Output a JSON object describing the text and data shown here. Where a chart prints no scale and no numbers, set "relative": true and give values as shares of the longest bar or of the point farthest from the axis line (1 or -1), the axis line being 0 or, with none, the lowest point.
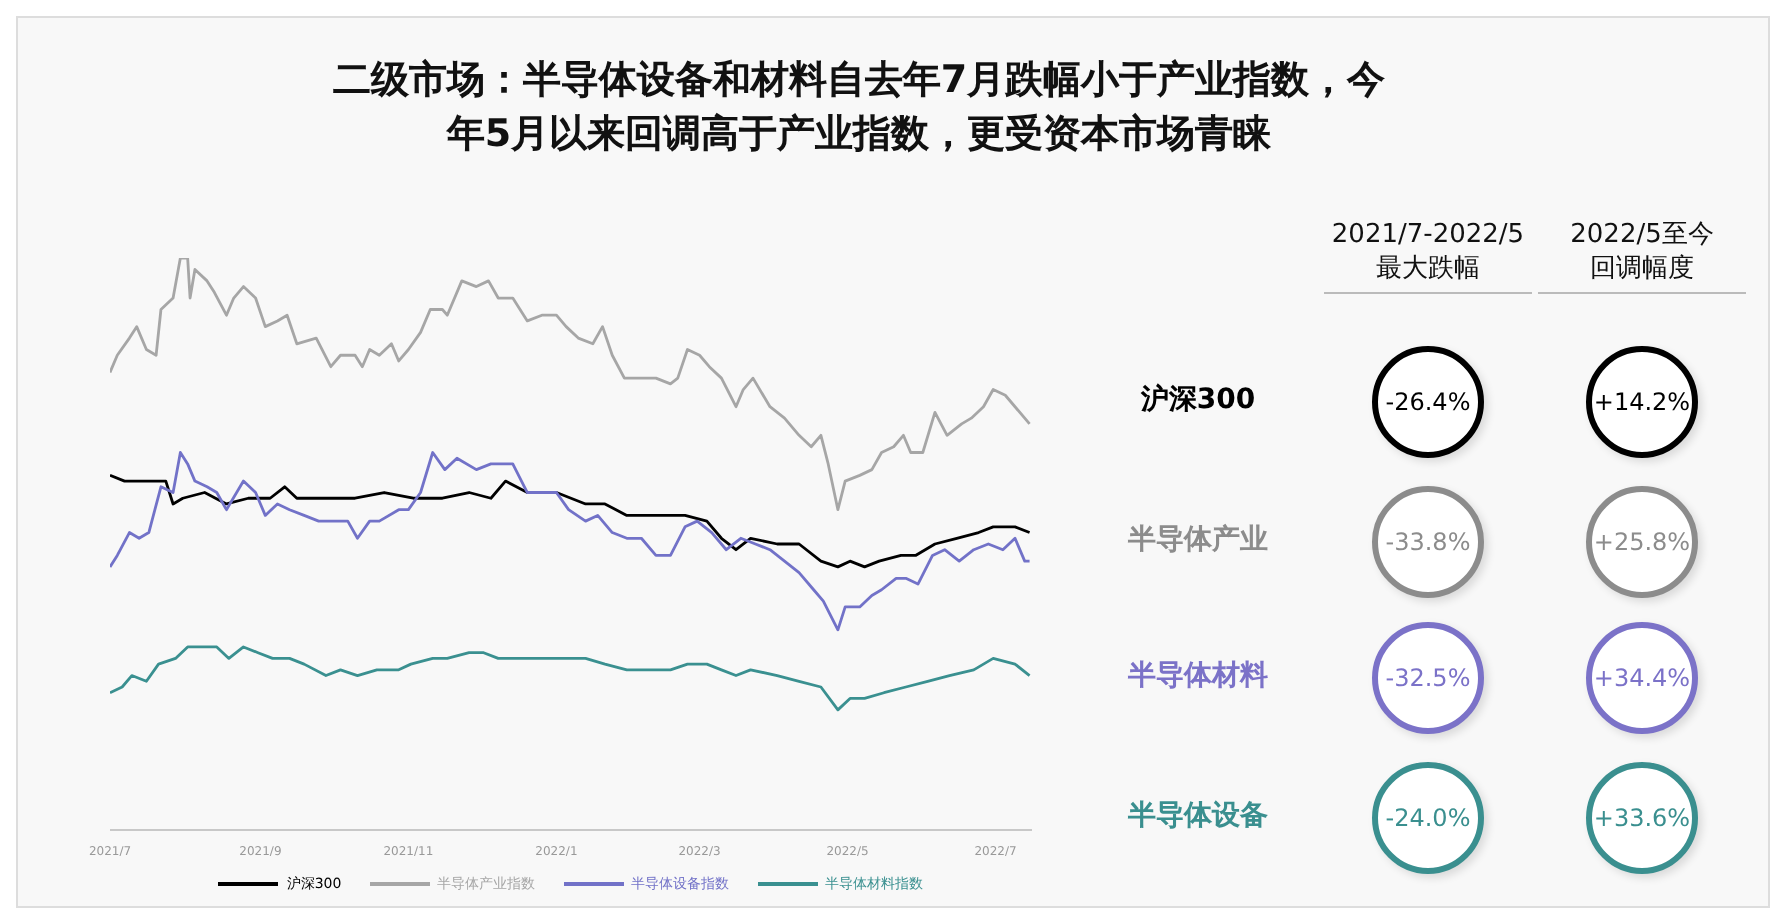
{
  "chart_data": [
    {
      "type": "line",
      "title": "二级市场：半导体设备和材料自去年7月跌幅小于产业指数，今年5月以来回调高于产业指数，更受资本市场青睐",
      "relative": true,
      "legend": "bottom",
      "marker": "none",
      "line_style": "solid",
      "xlim": [
        "2021-07-01",
        "2022-07-16"
      ],
      "xticks": [
        {
          "value": "2021-07-01",
          "label": "2021/7"
        },
        {
          "value": "2021-09-01",
          "label": "2021/9"
        },
        {
          "value": "2021-11-01",
          "label": "2021/11"
        },
        {
          "value": "2022-01-01",
          "label": "2022/1"
        },
        {
          "value": "2022-03-01",
          "label": "2022/3"
        },
        {
          "value": "2022-05-01",
          "label": "2022/5"
        },
        {
          "value": "2022-07-01",
          "label": "2022/7"
        }
      ],
      "series": [
        {
          "name": "沪深300",
          "color": "#000000",
          "x": [
            "2021-07-01",
            "2021-07-07",
            "2021-07-16",
            "2021-07-24",
            "2021-07-27",
            "2021-07-31",
            "2021-08-09",
            "2021-08-18",
            "2021-08-27",
            "2021-09-05",
            "2021-09-11",
            "2021-09-16",
            "2021-09-28",
            "2021-10-10",
            "2021-10-22",
            "2021-11-03",
            "2021-11-15",
            "2021-11-26",
            "2021-12-05",
            "2021-12-11",
            "2021-12-20",
            "2022-01-01",
            "2022-01-13",
            "2022-01-21",
            "2022-01-30",
            "2022-02-11",
            "2022-02-23",
            "2022-03-04",
            "2022-03-10",
            "2022-03-16",
            "2022-03-22",
            "2022-04-02",
            "2022-04-11",
            "2022-04-20",
            "2022-04-27",
            "2022-05-02",
            "2022-05-08",
            "2022-05-14",
            "2022-05-23",
            "2022-05-29",
            "2022-06-06",
            "2022-06-15",
            "2022-06-24",
            "2022-06-30",
            "2022-07-09",
            "2022-07-15"
          ],
          "values": [
            0.62,
            0.61,
            0.61,
            0.61,
            0.57,
            0.58,
            0.59,
            0.57,
            0.58,
            0.58,
            0.6,
            0.58,
            0.58,
            0.58,
            0.59,
            0.58,
            0.58,
            0.59,
            0.58,
            0.61,
            0.59,
            0.59,
            0.57,
            0.57,
            0.55,
            0.55,
            0.55,
            0.54,
            0.51,
            0.49,
            0.51,
            0.5,
            0.5,
            0.47,
            0.46,
            0.47,
            0.46,
            0.47,
            0.48,
            0.48,
            0.5,
            0.51,
            0.52,
            0.53,
            0.53,
            0.52
          ]
        },
        {
          "name": "半导体产业指数",
          "color": "#a6a6a6",
          "x": [
            "2021-07-01",
            "2021-07-04",
            "2021-07-09",
            "2021-07-12",
            "2021-07-16",
            "2021-07-20",
            "2021-07-22",
            "2021-07-27",
            "2021-07-30",
            "2021-08-02",
            "2021-08-03",
            "2021-08-05",
            "2021-08-10",
            "2021-08-13",
            "2021-08-18",
            "2021-08-21",
            "2021-08-25",
            "2021-08-30",
            "2021-09-03",
            "2021-09-08",
            "2021-09-12",
            "2021-09-16",
            "2021-09-24",
            "2021-09-30",
            "2021-10-04",
            "2021-10-10",
            "2021-10-13",
            "2021-10-16",
            "2021-10-20",
            "2021-10-25",
            "2021-10-28",
            "2021-11-01",
            "2021-11-06",
            "2021-11-10",
            "2021-11-15",
            "2021-11-17",
            "2021-11-23",
            "2021-11-29",
            "2021-12-04",
            "2021-12-08",
            "2021-12-14",
            "2021-12-20",
            "2021-12-26",
            "2022-01-01",
            "2022-01-05",
            "2022-01-10",
            "2022-01-16",
            "2022-01-20",
            "2022-01-24",
            "2022-01-29",
            "2022-02-05",
            "2022-02-11",
            "2022-02-17",
            "2022-02-20",
            "2022-02-24",
            "2022-03-01",
            "2022-03-05",
            "2022-03-10",
            "2022-03-16",
            "2022-03-19",
            "2022-03-23",
            "2022-03-30",
            "2022-04-05",
            "2022-04-11",
            "2022-04-16",
            "2022-04-20",
            "2022-04-23",
            "2022-04-27",
            "2022-04-30",
            "2022-05-06",
            "2022-05-11",
            "2022-05-15",
            "2022-05-20",
            "2022-05-24",
            "2022-05-27",
            "2022-06-01",
            "2022-06-06",
            "2022-06-11",
            "2022-06-17",
            "2022-06-21",
            "2022-06-26",
            "2022-06-30",
            "2022-07-05",
            "2022-07-09",
            "2022-07-15"
          ],
          "values": [
            0.8,
            0.83,
            0.86,
            0.88,
            0.84,
            0.83,
            0.91,
            0.93,
            1.0,
            1.0,
            0.93,
            0.98,
            0.96,
            0.94,
            0.9,
            0.93,
            0.95,
            0.93,
            0.88,
            0.89,
            0.9,
            0.85,
            0.86,
            0.81,
            0.83,
            0.83,
            0.81,
            0.84,
            0.83,
            0.85,
            0.82,
            0.84,
            0.87,
            0.91,
            0.91,
            0.9,
            0.96,
            0.95,
            0.96,
            0.93,
            0.93,
            0.89,
            0.9,
            0.9,
            0.88,
            0.86,
            0.85,
            0.88,
            0.83,
            0.79,
            0.79,
            0.79,
            0.78,
            0.79,
            0.84,
            0.83,
            0.81,
            0.79,
            0.74,
            0.77,
            0.79,
            0.74,
            0.72,
            0.69,
            0.67,
            0.69,
            0.64,
            0.56,
            0.61,
            0.62,
            0.63,
            0.66,
            0.67,
            0.69,
            0.66,
            0.66,
            0.73,
            0.69,
            0.71,
            0.72,
            0.74,
            0.77,
            0.76,
            0.74,
            0.71
          ]
        },
        {
          "name": "半导体设备指数",
          "color": "#7272c8",
          "x": [
            "2021-07-01",
            "2021-07-04",
            "2021-07-09",
            "2021-07-13",
            "2021-07-17",
            "2021-07-22",
            "2021-07-27",
            "2021-07-30",
            "2021-08-02",
            "2021-08-05",
            "2021-08-10",
            "2021-08-14",
            "2021-08-18",
            "2021-08-25",
            "2021-08-30",
            "2021-09-03",
            "2021-09-08",
            "2021-09-13",
            "2021-09-19",
            "2021-09-25",
            "2021-10-01",
            "2021-10-07",
            "2021-10-11",
            "2021-10-16",
            "2021-10-20",
            "2021-10-28",
            "2021-11-01",
            "2021-11-06",
            "2021-11-11",
            "2021-11-16",
            "2021-11-21",
            "2021-11-29",
            "2021-12-05",
            "2021-12-14",
            "2021-12-20",
            "2021-12-26",
            "2022-01-01",
            "2022-01-06",
            "2022-01-13",
            "2022-01-18",
            "2022-01-24",
            "2022-01-30",
            "2022-02-05",
            "2022-02-11",
            "2022-02-17",
            "2022-02-23",
            "2022-02-28",
            "2022-03-06",
            "2022-03-12",
            "2022-03-18",
            "2022-03-24",
            "2022-03-30",
            "2022-04-05",
            "2022-04-11",
            "2022-04-17",
            "2022-04-21",
            "2022-04-27",
            "2022-04-30",
            "2022-05-06",
            "2022-05-11",
            "2022-05-15",
            "2022-05-21",
            "2022-05-25",
            "2022-05-30",
            "2022-06-05",
            "2022-06-10",
            "2022-06-16",
            "2022-06-22",
            "2022-06-28",
            "2022-07-04",
            "2022-07-09",
            "2022-07-13",
            "2022-07-15"
          ],
          "values": [
            0.46,
            0.48,
            0.52,
            0.51,
            0.52,
            0.6,
            0.59,
            0.66,
            0.64,
            0.61,
            0.6,
            0.59,
            0.56,
            0.61,
            0.59,
            0.55,
            0.57,
            0.56,
            0.55,
            0.54,
            0.54,
            0.54,
            0.51,
            0.54,
            0.54,
            0.56,
            0.56,
            0.59,
            0.66,
            0.63,
            0.65,
            0.63,
            0.64,
            0.64,
            0.59,
            0.59,
            0.59,
            0.56,
            0.54,
            0.55,
            0.52,
            0.51,
            0.51,
            0.48,
            0.48,
            0.53,
            0.54,
            0.52,
            0.49,
            0.51,
            0.5,
            0.49,
            0.47,
            0.45,
            0.42,
            0.4,
            0.35,
            0.39,
            0.39,
            0.41,
            0.42,
            0.44,
            0.44,
            0.43,
            0.48,
            0.49,
            0.47,
            0.49,
            0.5,
            0.49,
            0.51,
            0.47,
            0.47
          ]
        },
        {
          "name": "半导体材料指数",
          "color": "#3a9090",
          "x": [
            "2021-07-01",
            "2021-07-06",
            "2021-07-10",
            "2021-07-16",
            "2021-07-21",
            "2021-07-28",
            "2021-08-02",
            "2021-08-09",
            "2021-08-14",
            "2021-08-19",
            "2021-08-25",
            "2021-08-31",
            "2021-09-06",
            "2021-09-13",
            "2021-09-19",
            "2021-09-28",
            "2021-10-04",
            "2021-10-11",
            "2021-10-19",
            "2021-10-28",
            "2021-11-02",
            "2021-11-11",
            "2021-11-17",
            "2021-11-26",
            "2021-12-02",
            "2021-12-08",
            "2021-12-17",
            "2021-12-26",
            "2022-01-03",
            "2022-01-13",
            "2022-01-21",
            "2022-01-30",
            "2022-02-08",
            "2022-02-17",
            "2022-02-24",
            "2022-03-04",
            "2022-03-10",
            "2022-03-16",
            "2022-03-22",
            "2022-04-02",
            "2022-04-11",
            "2022-04-20",
            "2022-04-27",
            "2022-05-02",
            "2022-05-08",
            "2022-05-16",
            "2022-05-25",
            "2022-06-03",
            "2022-06-12",
            "2022-06-22",
            "2022-06-30",
            "2022-07-09",
            "2022-07-15"
          ],
          "values": [
            0.24,
            0.25,
            0.27,
            0.26,
            0.29,
            0.3,
            0.32,
            0.32,
            0.32,
            0.3,
            0.32,
            0.31,
            0.3,
            0.3,
            0.29,
            0.27,
            0.28,
            0.27,
            0.28,
            0.28,
            0.29,
            0.3,
            0.3,
            0.31,
            0.31,
            0.3,
            0.3,
            0.3,
            0.3,
            0.3,
            0.29,
            0.28,
            0.28,
            0.28,
            0.29,
            0.29,
            0.28,
            0.27,
            0.28,
            0.27,
            0.26,
            0.25,
            0.21,
            0.23,
            0.23,
            0.24,
            0.25,
            0.26,
            0.27,
            0.28,
            0.3,
            0.29,
            0.27
          ]
        }
      ]
    },
    {
      "type": "other",
      "categories": [
        "2021/7-2022/5最大跌幅",
        "2022/5至今回调幅度"
      ],
      "y_categories": [
        "沪深300",
        "半导体产业",
        "半导体材料",
        "半导体设备"
      ],
      "colors": [
        "#000000",
        "#8c8c8c",
        "#7b72c8",
        "#3a8f8f"
      ],
      "cell_labels": [
        [
          "-26.4%",
          "+14.2%"
        ],
        [
          "-33.8%",
          "+25.8%"
        ],
        [
          "-32.5%",
          "+34.4%"
        ],
        [
          "-24.0%",
          "+33.6%"
        ]
      ]
    }
  ]
}
